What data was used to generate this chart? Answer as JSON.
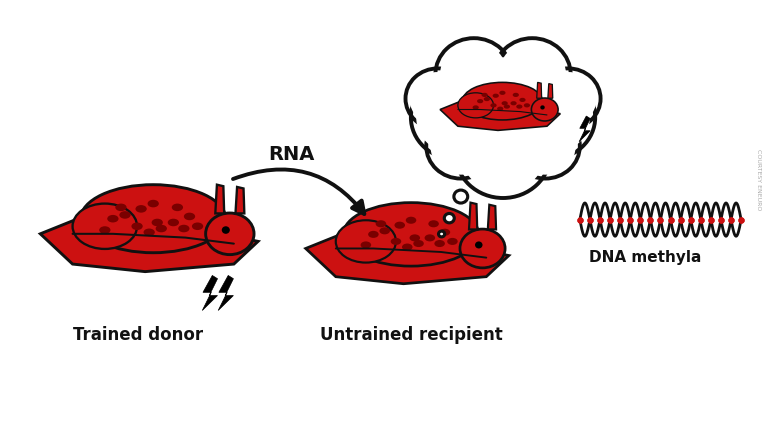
{
  "background_color": "#ffffff",
  "slug_fill": "#cc1111",
  "slug_dark": "#8B0000",
  "slug_outline": "#111111",
  "slug_spot_color": "#7a0000",
  "text_color": "#111111",
  "arrow_color": "#111111",
  "bubble_outline": "#111111",
  "dna_color": "#111111",
  "dna_dot_color": "#cc1111",
  "rna_label": "RNA",
  "trained_label": "Trained donor",
  "untrained_label": "Untrained recipient",
  "dna_label": "DNA methyla",
  "label_fontsize": 12,
  "rna_fontsize": 14,
  "figsize": [
    7.68,
    4.32
  ],
  "dpi": 100
}
